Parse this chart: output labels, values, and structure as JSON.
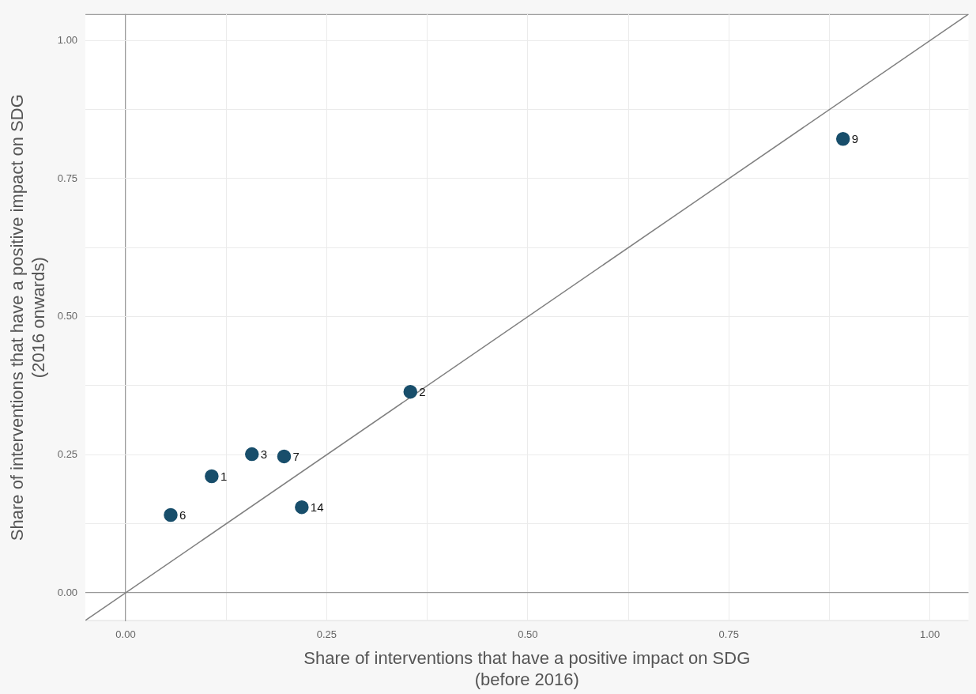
{
  "chart_data": {
    "type": "scatter",
    "xlabel": "Share of interventions that have a positive impact on SDG\n(before 2016)",
    "ylabel": "Share of interventions that have a positive impact on SDG\n(2016 onwards)",
    "xlim": [
      -0.05,
      1.048
    ],
    "ylim": [
      -0.051,
      1.048
    ],
    "xticks": [
      {
        "value": 0,
        "label": "0.00"
      },
      {
        "value": 0.125,
        "label": null
      },
      {
        "value": 0.25,
        "label": "0.25"
      },
      {
        "value": 0.375,
        "label": null
      },
      {
        "value": 0.5,
        "label": "0.50"
      },
      {
        "value": 0.625,
        "label": null
      },
      {
        "value": 0.75,
        "label": "0.75"
      },
      {
        "value": 0.875,
        "label": null
      },
      {
        "value": 1,
        "label": "1.00"
      }
    ],
    "yticks": [
      {
        "value": 0,
        "label": "0.00"
      },
      {
        "value": 0.125,
        "label": null
      },
      {
        "value": 0.25,
        "label": "0.25"
      },
      {
        "value": 0.375,
        "label": null
      },
      {
        "value": 0.5,
        "label": "0.50"
      },
      {
        "value": 0.625,
        "label": null
      },
      {
        "value": 0.75,
        "label": "0.75"
      },
      {
        "value": 0.875,
        "label": null
      },
      {
        "value": 1,
        "label": "1.00"
      }
    ],
    "grid": true,
    "legend": false,
    "marker": "circle",
    "series": [
      {
        "color": "#184e6b",
        "x": [
          0.892,
          0.354,
          0.157,
          0.197,
          0.107,
          0.219,
          0.056
        ],
        "values": [
          0.822,
          0.364,
          0.251,
          0.247,
          0.211,
          0.155,
          0.141
        ]
      },
      {
        "type": "line",
        "color": "#808080",
        "x": [
          -0.05,
          1.048
        ],
        "values": [
          -0.05,
          1.048
        ],
        "marker": "none",
        "line_style": "solid"
      }
    ],
    "annotations": [
      {
        "text": "9",
        "x": 0.892,
        "y": 0.822
      },
      {
        "text": "2",
        "x": 0.354,
        "y": 0.364
      },
      {
        "text": "3",
        "x": 0.157,
        "y": 0.251
      },
      {
        "text": "7",
        "x": 0.197,
        "y": 0.247
      },
      {
        "text": "1",
        "x": 0.107,
        "y": 0.211
      },
      {
        "text": "14",
        "x": 0.219,
        "y": 0.155
      },
      {
        "text": "6",
        "x": 0.056,
        "y": 0.141
      }
    ]
  }
}
